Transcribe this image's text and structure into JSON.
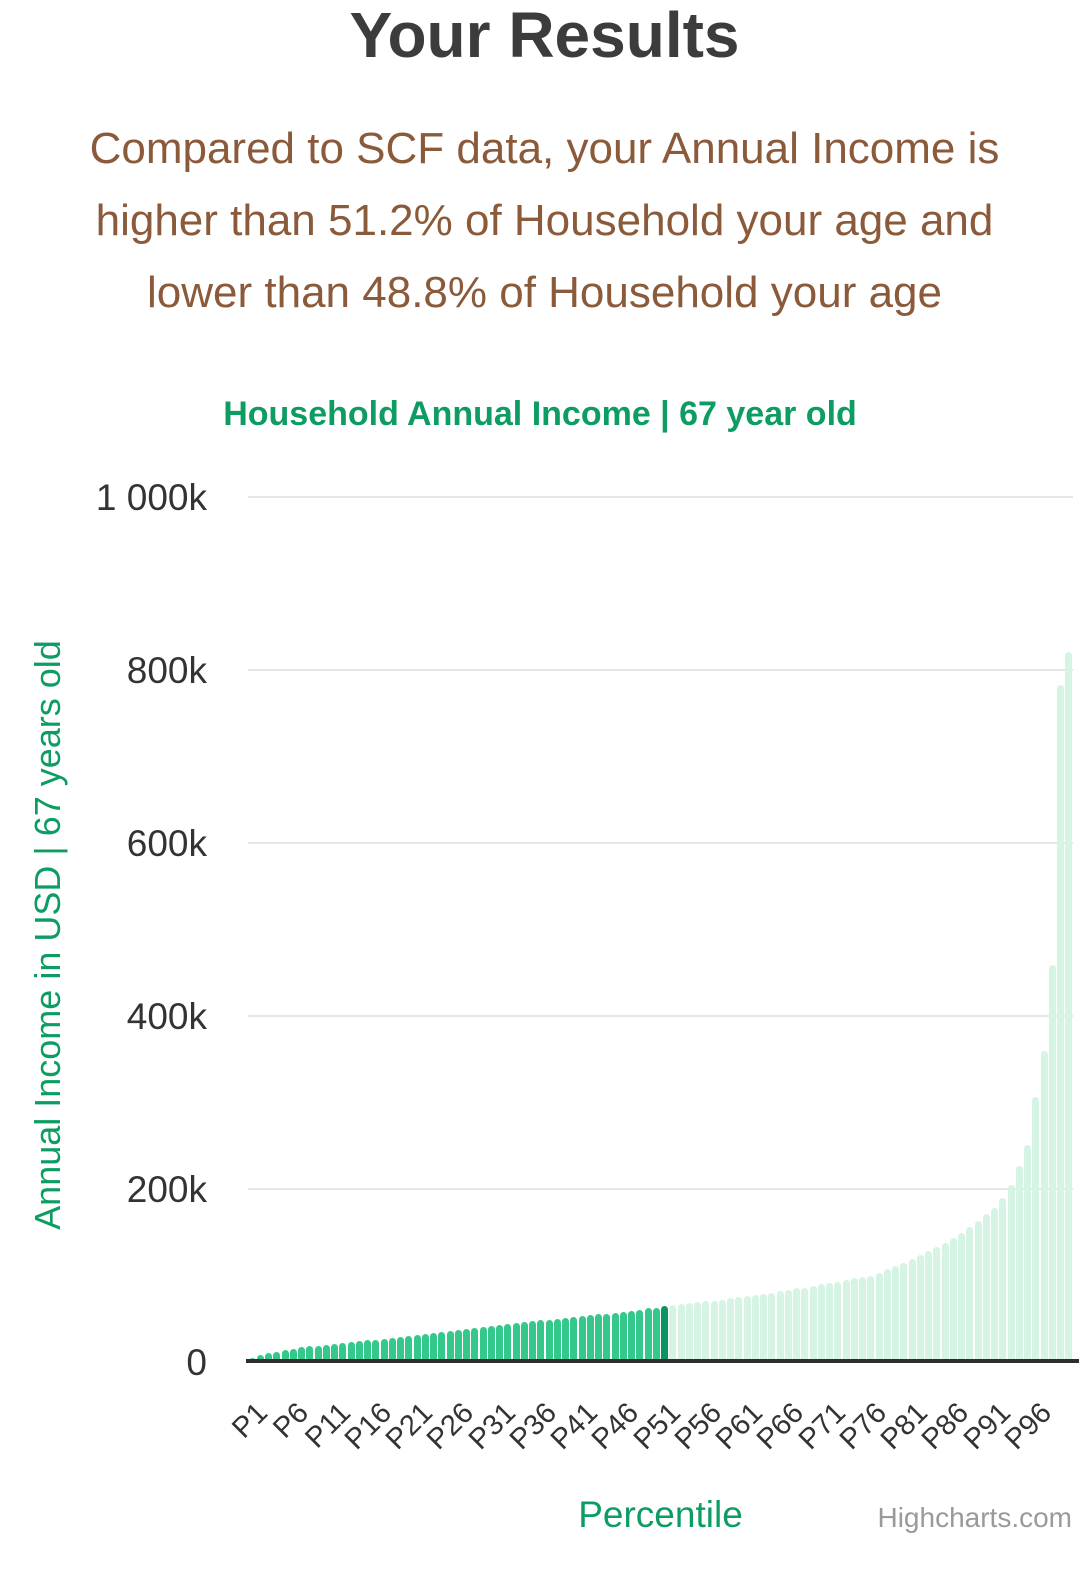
{
  "page": {
    "title": "Your Results",
    "subtitle_lines": [
      "Compared to SCF data, your Annual Income is",
      "higher than 51.2% of Household your age and",
      "lower than 48.8% of Household your age"
    ],
    "higher_than_pct": "51.2%",
    "lower_than_pct": "48.8%"
  },
  "chart": {
    "credit": "Highcharts.com"
  },
  "chart_data": {
    "type": "bar",
    "title": "Household Annual Income | 67 year old",
    "xlabel": "Percentile",
    "ylabel": "Annual Income in USD | 67 years old",
    "y_unit": "thousands of USD",
    "ylim": [
      0,
      1000
    ],
    "grid": true,
    "legend": "none",
    "y_tick_values": [
      0,
      200,
      400,
      600,
      800,
      1000
    ],
    "y_tick_labels": [
      "0",
      "200k",
      "400k",
      "600k",
      "800k",
      "1 000k"
    ],
    "x_tick_percentiles": [
      1,
      6,
      11,
      16,
      21,
      26,
      31,
      36,
      41,
      46,
      51,
      56,
      61,
      66,
      71,
      76,
      81,
      86,
      91,
      96
    ],
    "x_tick_labels": [
      "P1",
      "P6",
      "P11",
      "P16",
      "P21",
      "P26",
      "P31",
      "P36",
      "P41",
      "P46",
      "P51",
      "P56",
      "P61",
      "P66",
      "P71",
      "P76",
      "P81",
      "P86",
      "P91",
      "P96"
    ],
    "series": [
      {
        "name": "Household Annual Income",
        "percentiles_start": 1,
        "values_k": [
          5,
          8,
          10,
          12,
          14,
          15,
          17,
          18,
          19,
          20,
          21,
          22,
          23,
          24,
          25,
          26,
          27,
          28,
          29,
          30,
          31,
          32,
          33,
          35,
          36,
          37,
          38,
          39,
          41,
          42,
          43,
          44,
          45,
          46,
          47,
          48,
          49,
          50,
          51,
          52,
          53,
          54,
          55,
          56,
          57,
          58,
          59,
          60,
          62,
          63,
          65,
          66,
          67,
          68,
          69,
          70,
          71,
          72,
          74,
          75,
          76,
          78,
          79,
          80,
          82,
          83,
          85,
          86,
          88,
          90,
          91,
          93,
          95,
          97,
          98,
          100,
          103,
          107,
          111,
          115,
          119,
          124,
          128,
          133,
          138,
          143,
          149,
          156,
          163,
          171,
          178,
          190,
          205,
          227,
          251,
          306,
          360,
          459,
          783,
          821
        ]
      }
    ],
    "highlight": {
      "percentile": 51,
      "meaning": "user position marker"
    },
    "colors": {
      "bar_below_user": "#34c98a",
      "bar_user": "#0a9462",
      "bar_above_user": "#d6f4e4",
      "axis_line": "#2e2e2e",
      "gridline": "#e6e6e6",
      "green_text": "#0d9d62",
      "brown_text": "#8a5a3a",
      "title_text": "#3c3c3c",
      "tick_text": "#333333",
      "credit_text": "#9a9a9a"
    }
  }
}
